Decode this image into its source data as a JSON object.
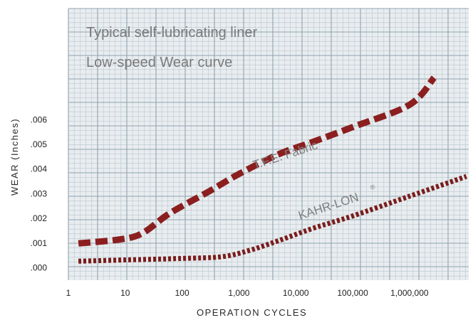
{
  "chart_data": {
    "type": "line",
    "title": [
      "Typical self-lubricating liner",
      "Low-speed Wear curve"
    ],
    "xlabel": "OPERATION CYCLES",
    "ylabel": "WEAR (Inches)",
    "x_scale": "log",
    "x_ticks": [
      {
        "value": 1,
        "label": "1"
      },
      {
        "value": 10,
        "label": "10"
      },
      {
        "value": 100,
        "label": "100"
      },
      {
        "value": 1000,
        "label": "1,000"
      },
      {
        "value": 10000,
        "label": "10,000"
      },
      {
        "value": 100000,
        "label": "100,000"
      },
      {
        "value": 1000000,
        "label": "1,000,000"
      }
    ],
    "y_ticks": [
      {
        "value": 0.0,
        "label": ".000"
      },
      {
        "value": 0.001,
        "label": ".001"
      },
      {
        "value": 0.002,
        "label": ".002"
      },
      {
        "value": 0.003,
        "label": ".003"
      },
      {
        "value": 0.004,
        "label": ".004"
      },
      {
        "value": 0.005,
        "label": ".005"
      },
      {
        "value": 0.006,
        "label": ".006"
      }
    ],
    "xlim": [
      1,
      11000000
    ],
    "ylim": [
      -0.0005,
      0.0105
    ],
    "grid": true,
    "series": [
      {
        "name": "T.F.E. Fabric",
        "color": "#8b1f1f",
        "style": "dashed",
        "points": [
          [
            1.5,
            0.00099
          ],
          [
            8,
            0.00115
          ],
          [
            20,
            0.0014
          ],
          [
            60,
            0.0022
          ],
          [
            300,
            0.0031
          ],
          [
            1000,
            0.0038
          ],
          [
            5000,
            0.0046
          ],
          [
            20000,
            0.0051
          ],
          [
            100000,
            0.0057
          ],
          [
            1000000,
            0.0066
          ],
          [
            2700000,
            0.0077
          ]
        ]
      },
      {
        "name": "KAHR-LON",
        "label_mark": "®",
        "color": "#7a1c1c",
        "style": "dotted",
        "points": [
          [
            1.5,
            0.00027
          ],
          [
            10,
            0.00032
          ],
          [
            100,
            0.00038
          ],
          [
            500,
            0.00045
          ],
          [
            1500,
            0.0007
          ],
          [
            5000,
            0.0011
          ],
          [
            20000,
            0.0016
          ],
          [
            100000,
            0.0021
          ],
          [
            1000000,
            0.0029
          ],
          [
            10000000,
            0.0037
          ]
        ]
      }
    ]
  }
}
